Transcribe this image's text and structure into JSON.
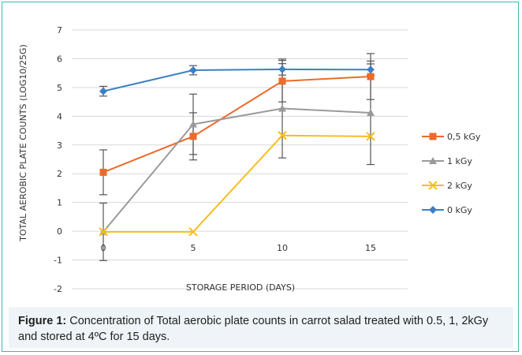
{
  "chart_data": {
    "type": "line",
    "xlabel": "STORAGE PERIOD (DAYS)",
    "ylabel": "TOTAL AEROBIC PLATE COUNTS (LOG10/25G)",
    "x": [
      0,
      5,
      10,
      15
    ],
    "x_tick_labels": [
      "0",
      "5",
      "10",
      "15"
    ],
    "ylim": [
      -2,
      7
    ],
    "y_ticks": [
      -2,
      -1,
      0,
      1,
      2,
      3,
      4,
      5,
      6,
      7
    ],
    "grid": "horizontal",
    "legend_position": "right",
    "series": [
      {
        "name": "0,5 kGy",
        "color": "#ed6a2b",
        "marker": "square",
        "values": [
          2.05,
          3.3,
          5.22,
          5.38
        ],
        "error": [
          0.78,
          0.82,
          0.72,
          0.8
        ]
      },
      {
        "name": "1 kGy",
        "color": "#9a9a9a",
        "marker": "triangle",
        "values": [
          -0.02,
          3.72,
          4.27,
          4.12
        ],
        "error": [
          1.0,
          1.05,
          1.72,
          1.8
        ]
      },
      {
        "name": "2 kGy",
        "color": "#f7bd1f",
        "marker": "x",
        "values": [
          -0.02,
          -0.02,
          3.33,
          3.3
        ],
        "error": [
          0.0,
          0.0,
          0.0,
          0.0
        ]
      },
      {
        "name": "0 kGy",
        "color": "#3d7fc6",
        "marker": "diamond",
        "values": [
          4.87,
          5.6,
          5.63,
          5.62
        ],
        "error": [
          0.17,
          0.16,
          0.2,
          0.2
        ]
      }
    ]
  },
  "caption": {
    "label": "Figure 1:",
    "text": " Concentration of Total aerobic plate counts in carrot salad treated with 0.5, 1, 2kGy and stored at 4ºC for 15 days."
  }
}
